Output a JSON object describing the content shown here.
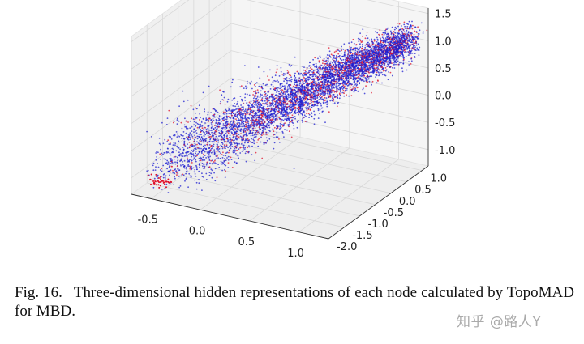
{
  "caption": {
    "label": "Fig. 16.",
    "text": "Three-dimensional hidden representations of each node calculated by TopoMAD for MBD."
  },
  "watermark": "知乎 @路人Y",
  "colors": {
    "series_a": "#1f1fd0",
    "series_b": "#e0102a",
    "pane": "#f2f2f2",
    "grid": "#d8d8d8"
  },
  "chart_data": {
    "type": "scatter",
    "projection": "3d",
    "title": "",
    "xlabel": "",
    "ylabel": "",
    "zlabel": "",
    "grid": true,
    "xlim": [
      -0.7,
      1.3
    ],
    "ylim": [
      -2.0,
      1.2
    ],
    "zlim": [
      -1.3,
      1.6
    ],
    "x_ticks": [
      "-0.5",
      "0.0",
      "0.5",
      "1.0"
    ],
    "y_ticks": [
      "-2.0",
      "-1.5",
      "-1.0",
      "-0.5",
      "0.0",
      "0.5",
      "1.0"
    ],
    "z_ticks": [
      "-1.0",
      "-0.5",
      "0.0",
      "0.5",
      "1.0",
      "1.5"
    ],
    "series": [
      {
        "color": "#1f1fd0",
        "approx_count": 5000,
        "description_range": {
          "x": [
            -0.6,
            1.2
          ],
          "y": [
            -1.8,
            1.0
          ],
          "z": [
            -1.0,
            1.2
          ]
        }
      },
      {
        "color": "#e0102a",
        "approx_count": 1500,
        "description_range": {
          "x": [
            -0.5,
            1.2
          ],
          "y": [
            -1.6,
            1.0
          ],
          "z": [
            -1.0,
            1.2
          ]
        }
      }
    ]
  }
}
